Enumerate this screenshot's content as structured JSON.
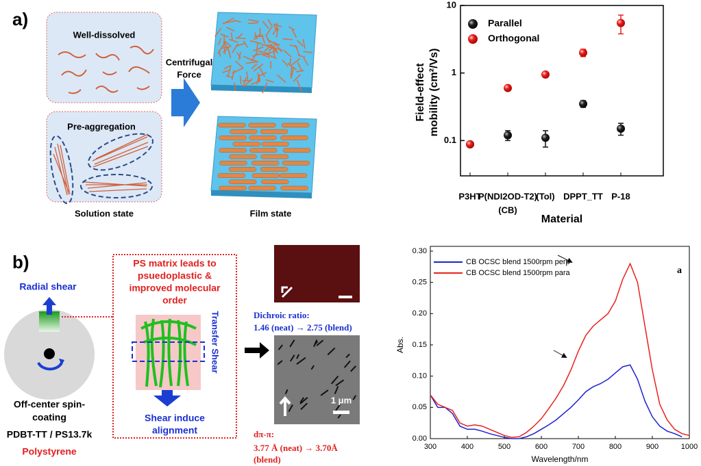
{
  "panel_a": {
    "label": "a)",
    "well_dissolved": "Well-dissolved",
    "pre_aggregation": "Pre-aggregation",
    "solution_caption": "Solution state",
    "force": [
      "Centrifugal",
      "Force"
    ],
    "film_caption": "Film state"
  },
  "panel_b": {
    "label": "b)",
    "radial_shear": "Radial shear",
    "spin": [
      "Off-center spin-",
      "coating"
    ],
    "materials": "PDBT-TT / PS13.7k",
    "polystyrene": "Polystyrene",
    "matrix_text": [
      "PS matrix leads to",
      "psuedoplastic &",
      "improved molecular",
      "order"
    ],
    "transfer_shear": "Transfer Shear",
    "shear_align": [
      "Shear induce",
      "alignment"
    ],
    "dichroic": [
      "Dichroic ratio:",
      "1.46 (neat) → 2.75 (blend)"
    ],
    "scale_bar": "1 μm",
    "d_spacing": [
      "dπ-π:",
      "3.77  Å   (neat) → 3.70Å",
      "(blend)"
    ]
  },
  "chart_data": [
    {
      "type": "dot",
      "categories": [
        [
          "P3HT"
        ],
        [
          "P(NDI2OD-T2)",
          "(CB)"
        ],
        [
          "(Tol)"
        ],
        [
          "DPPT_TT"
        ],
        [
          "P-18"
        ]
      ],
      "series": [
        {
          "name": "Parallel",
          "color": "#111111",
          "values": [
            0.088,
            0.12,
            0.11,
            0.35,
            0.15
          ],
          "errors": [
            0.005,
            0.02,
            0.03,
            0.04,
            0.03
          ]
        },
        {
          "name": "Orthogonal",
          "color": "#e8201c",
          "values": [
            0.088,
            0.6,
            0.95,
            2.0,
            5.5
          ],
          "errors": [
            0.006,
            0.05,
            0.08,
            0.25,
            1.7
          ]
        }
      ],
      "xlabel": "Material",
      "ylabel": [
        "Field-effect",
        "mobility (cm²/Vs)"
      ],
      "ylim": [
        0.03,
        10
      ],
      "yticks": [
        0.1,
        1,
        10
      ],
      "log_y": true,
      "legend": "upper left"
    },
    {
      "type": "line",
      "x": [
        300,
        320,
        340,
        360,
        380,
        400,
        420,
        440,
        460,
        480,
        500,
        520,
        540,
        560,
        580,
        600,
        620,
        640,
        660,
        680,
        700,
        720,
        740,
        760,
        780,
        800,
        820,
        840,
        860,
        880,
        900,
        920,
        940,
        960,
        980,
        1000
      ],
      "series": [
        {
          "name": "CB OCSC blend 1500rpm perp",
          "color": "#1f1fd0",
          "values": [
            0.07,
            0.05,
            0.05,
            0.04,
            0.02,
            0.015,
            0.015,
            0.012,
            0.008,
            0.005,
            0.002,
            0.0,
            0.0,
            0.003,
            0.008,
            0.015,
            0.022,
            0.03,
            0.04,
            0.05,
            0.062,
            0.075,
            0.083,
            0.088,
            0.095,
            0.105,
            0.115,
            0.118,
            0.095,
            0.06,
            0.035,
            0.02,
            0.012,
            0.008,
            0.003,
            null
          ]
        },
        {
          "name": "CB OCSC blend 1500rpm para",
          "color": "#e8201c",
          "values": [
            0.07,
            0.055,
            0.05,
            0.045,
            0.025,
            0.02,
            0.022,
            0.02,
            0.015,
            0.01,
            0.005,
            0.002,
            0.003,
            0.01,
            0.02,
            0.032,
            0.048,
            0.065,
            0.085,
            0.11,
            0.14,
            0.165,
            0.18,
            0.19,
            0.2,
            0.22,
            0.255,
            0.28,
            0.25,
            0.18,
            0.11,
            0.055,
            0.03,
            0.015,
            0.008,
            0.005
          ]
        }
      ],
      "xlabel": "Wavelength/nm",
      "ylabel": "Abs.",
      "xlim": [
        300,
        1000
      ],
      "xticks": [
        300,
        400,
        500,
        600,
        700,
        800,
        900,
        1000
      ],
      "ylim": [
        0,
        0.3
      ],
      "yticks": [
        {
          "value": 0,
          "label": "0.00"
        },
        {
          "value": 0.05,
          "label": "0.05"
        },
        {
          "value": 0.1,
          "label": "0.10"
        },
        {
          "value": 0.15,
          "label": "0.15"
        },
        {
          "value": 0.2,
          "label": "0.20"
        },
        {
          "value": 0.25,
          "label": "0.25"
        },
        {
          "value": 0.3,
          "label": "0.30"
        }
      ],
      "annotation": "a",
      "legend": "upper left"
    }
  ]
}
